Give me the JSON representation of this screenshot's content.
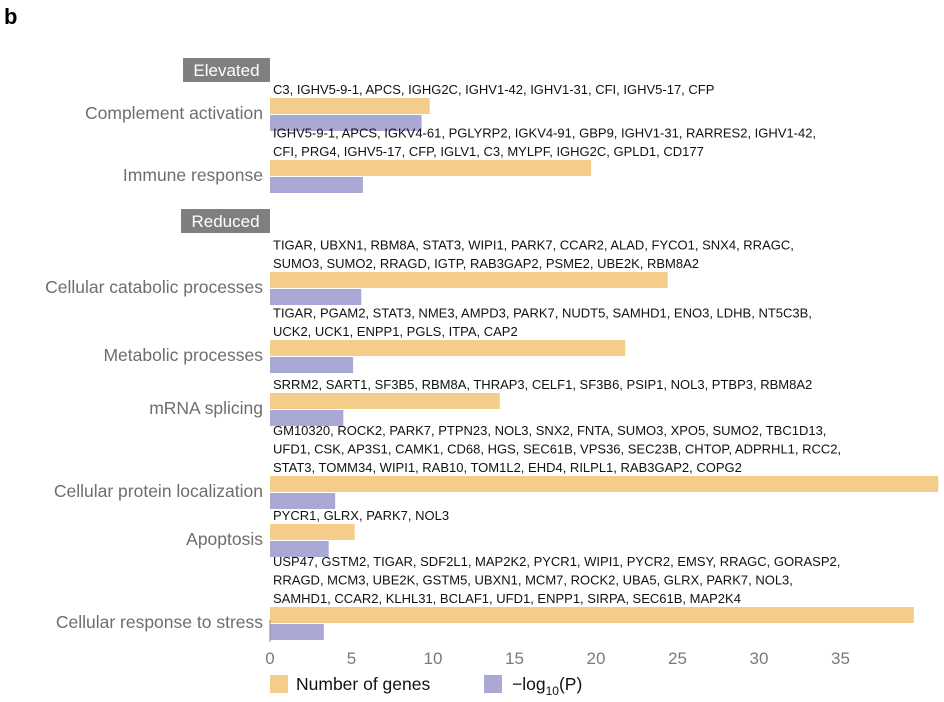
{
  "panel_letter": "b",
  "colors": {
    "genes": "#f5cd8a",
    "pvalue": "#aaa9d6",
    "section_bg": "#7f7f7f",
    "axis": "#8c8c8c"
  },
  "legend": {
    "genes_label": "Number of genes",
    "pvalue_prefix": "−log",
    "pvalue_sub": "10",
    "pvalue_suffix": "(P)"
  },
  "chart_data": {
    "type": "bar",
    "orientation": "horizontal",
    "xlim": [
      0,
      41
    ],
    "xticks": [
      0,
      5,
      10,
      15,
      20,
      25,
      30,
      35
    ],
    "legend_position": "bottom",
    "series": [
      {
        "name": "Number of genes",
        "values": [
          9.8,
          19.7,
          24.4,
          21.8,
          14.1,
          41,
          5.2,
          39.5
        ]
      },
      {
        "name": "−log10(P)",
        "values": [
          9.3,
          5.7,
          5.6,
          5.1,
          4.5,
          4.0,
          3.6,
          3.3
        ]
      }
    ],
    "sections": [
      {
        "label": "Elevated",
        "categories": [
          0,
          1
        ]
      },
      {
        "label": "Reduced",
        "categories": [
          2,
          3,
          4,
          5,
          6,
          7
        ]
      }
    ],
    "categories": [
      {
        "name": "Complement activation",
        "genes": [
          "C3, IGHV5-9-1, APCS, IGHG2C, IGHV1-42, IGHV1-31, CFI, IGHV5-17, CFP"
        ]
      },
      {
        "name": "Immune response",
        "genes": [
          "IGHV5-9-1, APCS, IGKV4-61, PGLYRP2, IGKV4-91, GBP9, IGHV1-31, RARRES2, IGHV1-42,",
          "CFI, PRG4, IGHV5-17, CFP, IGLV1, C3, MYLPF, IGHG2C, GPLD1, CD177"
        ]
      },
      {
        "name": "Cellular catabolic processes",
        "genes": [
          "TIGAR, UBXN1, RBM8A, STAT3, WIPI1, PARK7, CCAR2, ALAD, FYCO1, SNX4, RRAGC,",
          "SUMO3, SUMO2, RRAGD, IGTP, RAB3GAP2, PSME2, UBE2K, RBM8A2"
        ]
      },
      {
        "name": "Metabolic processes",
        "genes": [
          "TIGAR, PGAM2, STAT3, NME3, AMPD3, PARK7, NUDT5, SAMHD1, ENO3, LDHB, NT5C3B,",
          "UCK2, UCK1, ENPP1, PGLS, ITPA, CAP2"
        ]
      },
      {
        "name": "mRNA splicing",
        "genes": [
          "SRRM2, SART1, SF3B5, RBM8A, THRAP3, CELF1, SF3B6, PSIP1, NOL3, PTBP3, RBM8A2"
        ]
      },
      {
        "name": "Cellular protein localization",
        "genes": [
          "GM10320, ROCK2, PARK7, PTPN23, NOL3, SNX2, FNTA, SUMO3, XPO5, SUMO2, TBC1D13,",
          "UFD1, CSK, AP3S1, CAMK1, CD68, HGS, SEC61B, VPS36, SEC23B, CHTOP, ADPRHL1, RCC2,",
          "STAT3, TOMM34, WIPI1, RAB10, TOM1L2, EHD4, RILPL1, RAB3GAP2, COPG2"
        ]
      },
      {
        "name": "Apoptosis",
        "genes": [
          "PYCR1, GLRX, PARK7, NOL3"
        ]
      },
      {
        "name": "Cellular response to stress",
        "genes": [
          "USP47, GSTM2, TIGAR, SDF2L1, MAP2K2, PYCR1, WIPI1, PYCR2, EMSY, RRAGC, GORASP2,",
          "RRAGD, MCM3, UBE2K, GSTM5, UBXN1, MCM7, ROCK2, UBA5, GLRX, PARK7, NOL3,",
          "SAMHD1, CCAR2, KLHL31, BCLAF1, UFD1, ENPP1, SIRPA, SEC61B, MAP2K4"
        ]
      }
    ]
  }
}
